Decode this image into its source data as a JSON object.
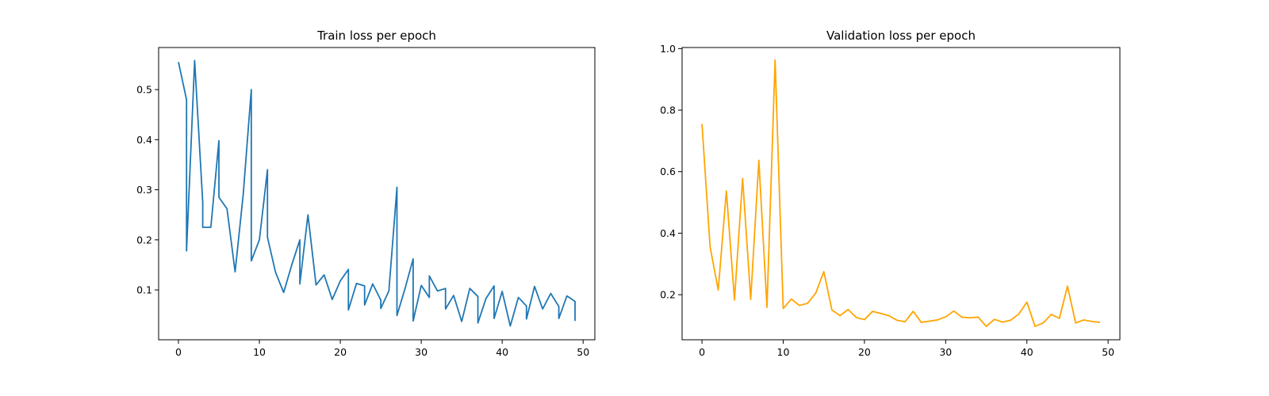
{
  "chart_data": [
    {
      "type": "line",
      "title": "Train loss per epoch",
      "xlabel": "",
      "ylabel": "",
      "xlim": [
        -2.45,
        51.45
      ],
      "ylim": [
        0.0005,
        0.584
      ],
      "xticks": [
        0,
        10,
        20,
        30,
        40,
        50
      ],
      "yticks": [
        0.1,
        0.2,
        0.3,
        0.4,
        0.5
      ],
      "ytick_labels": [
        "0.1",
        "0.2",
        "0.3",
        "0.4",
        "0.5"
      ],
      "grid": false,
      "color": "#1f77b4",
      "series": [
        {
          "x": [
            0,
            1,
            1,
            2,
            3,
            3,
            4,
            5,
            5,
            6,
            7,
            8,
            9,
            9,
            10,
            11,
            11,
            12,
            13,
            14,
            15,
            15,
            16,
            17,
            18,
            19,
            20,
            21,
            21,
            22,
            23,
            23,
            24,
            25,
            25,
            26,
            27,
            27,
            28,
            29,
            29,
            30,
            31,
            31,
            32,
            33,
            33,
            34,
            35,
            36,
            37,
            37,
            38,
            39,
            39,
            40,
            41,
            42,
            43,
            43,
            44,
            45,
            46,
            47,
            47,
            48,
            49,
            49
          ],
          "y": [
            0.555,
            0.48,
            0.178,
            0.558,
            0.275,
            0.225,
            0.225,
            0.398,
            0.285,
            0.262,
            0.136,
            0.29,
            0.5,
            0.158,
            0.2,
            0.34,
            0.205,
            0.135,
            0.095,
            0.15,
            0.2,
            0.112,
            0.25,
            0.11,
            0.13,
            0.081,
            0.118,
            0.141,
            0.06,
            0.113,
            0.108,
            0.07,
            0.112,
            0.08,
            0.063,
            0.098,
            0.305,
            0.049,
            0.103,
            0.162,
            0.038,
            0.109,
            0.085,
            0.128,
            0.098,
            0.103,
            0.062,
            0.089,
            0.037,
            0.103,
            0.087,
            0.034,
            0.083,
            0.108,
            0.043,
            0.097,
            0.028,
            0.085,
            0.068,
            0.042,
            0.107,
            0.062,
            0.093,
            0.067,
            0.043,
            0.088,
            0.077,
            0.038
          ]
        }
      ]
    },
    {
      "type": "line",
      "title": "Validation loss per epoch",
      "xlabel": "",
      "ylabel": "",
      "xlim": [
        -2.45,
        51.45
      ],
      "ylim": [
        0.0535,
        1.0035
      ],
      "xticks": [
        0,
        10,
        20,
        30,
        40,
        50
      ],
      "yticks": [
        0.2,
        0.4,
        0.6,
        0.8,
        1.0
      ],
      "ytick_labels": [
        "0.2",
        "0.4",
        "0.6",
        "0.8",
        "1.0"
      ],
      "grid": false,
      "color": "#ffa500",
      "series": [
        {
          "x": [
            0,
            1,
            2,
            3,
            4,
            5,
            6,
            7,
            8,
            9,
            10,
            11,
            12,
            13,
            14,
            15,
            16,
            17,
            18,
            19,
            20,
            21,
            22,
            23,
            24,
            25,
            26,
            27,
            28,
            29,
            30,
            31,
            32,
            33,
            34,
            35,
            36,
            37,
            38,
            39,
            40,
            41,
            42,
            43,
            44,
            45,
            46,
            47,
            48,
            49
          ],
          "y": [
            0.755,
            0.355,
            0.215,
            0.537,
            0.183,
            0.578,
            0.185,
            0.637,
            0.159,
            0.963,
            0.155,
            0.186,
            0.165,
            0.172,
            0.205,
            0.275,
            0.15,
            0.132,
            0.152,
            0.126,
            0.119,
            0.146,
            0.139,
            0.132,
            0.117,
            0.112,
            0.146,
            0.11,
            0.114,
            0.118,
            0.128,
            0.147,
            0.127,
            0.125,
            0.127,
            0.097,
            0.12,
            0.111,
            0.117,
            0.137,
            0.176,
            0.097,
            0.108,
            0.136,
            0.123,
            0.228,
            0.108,
            0.118,
            0.113,
            0.11
          ]
        }
      ]
    }
  ]
}
